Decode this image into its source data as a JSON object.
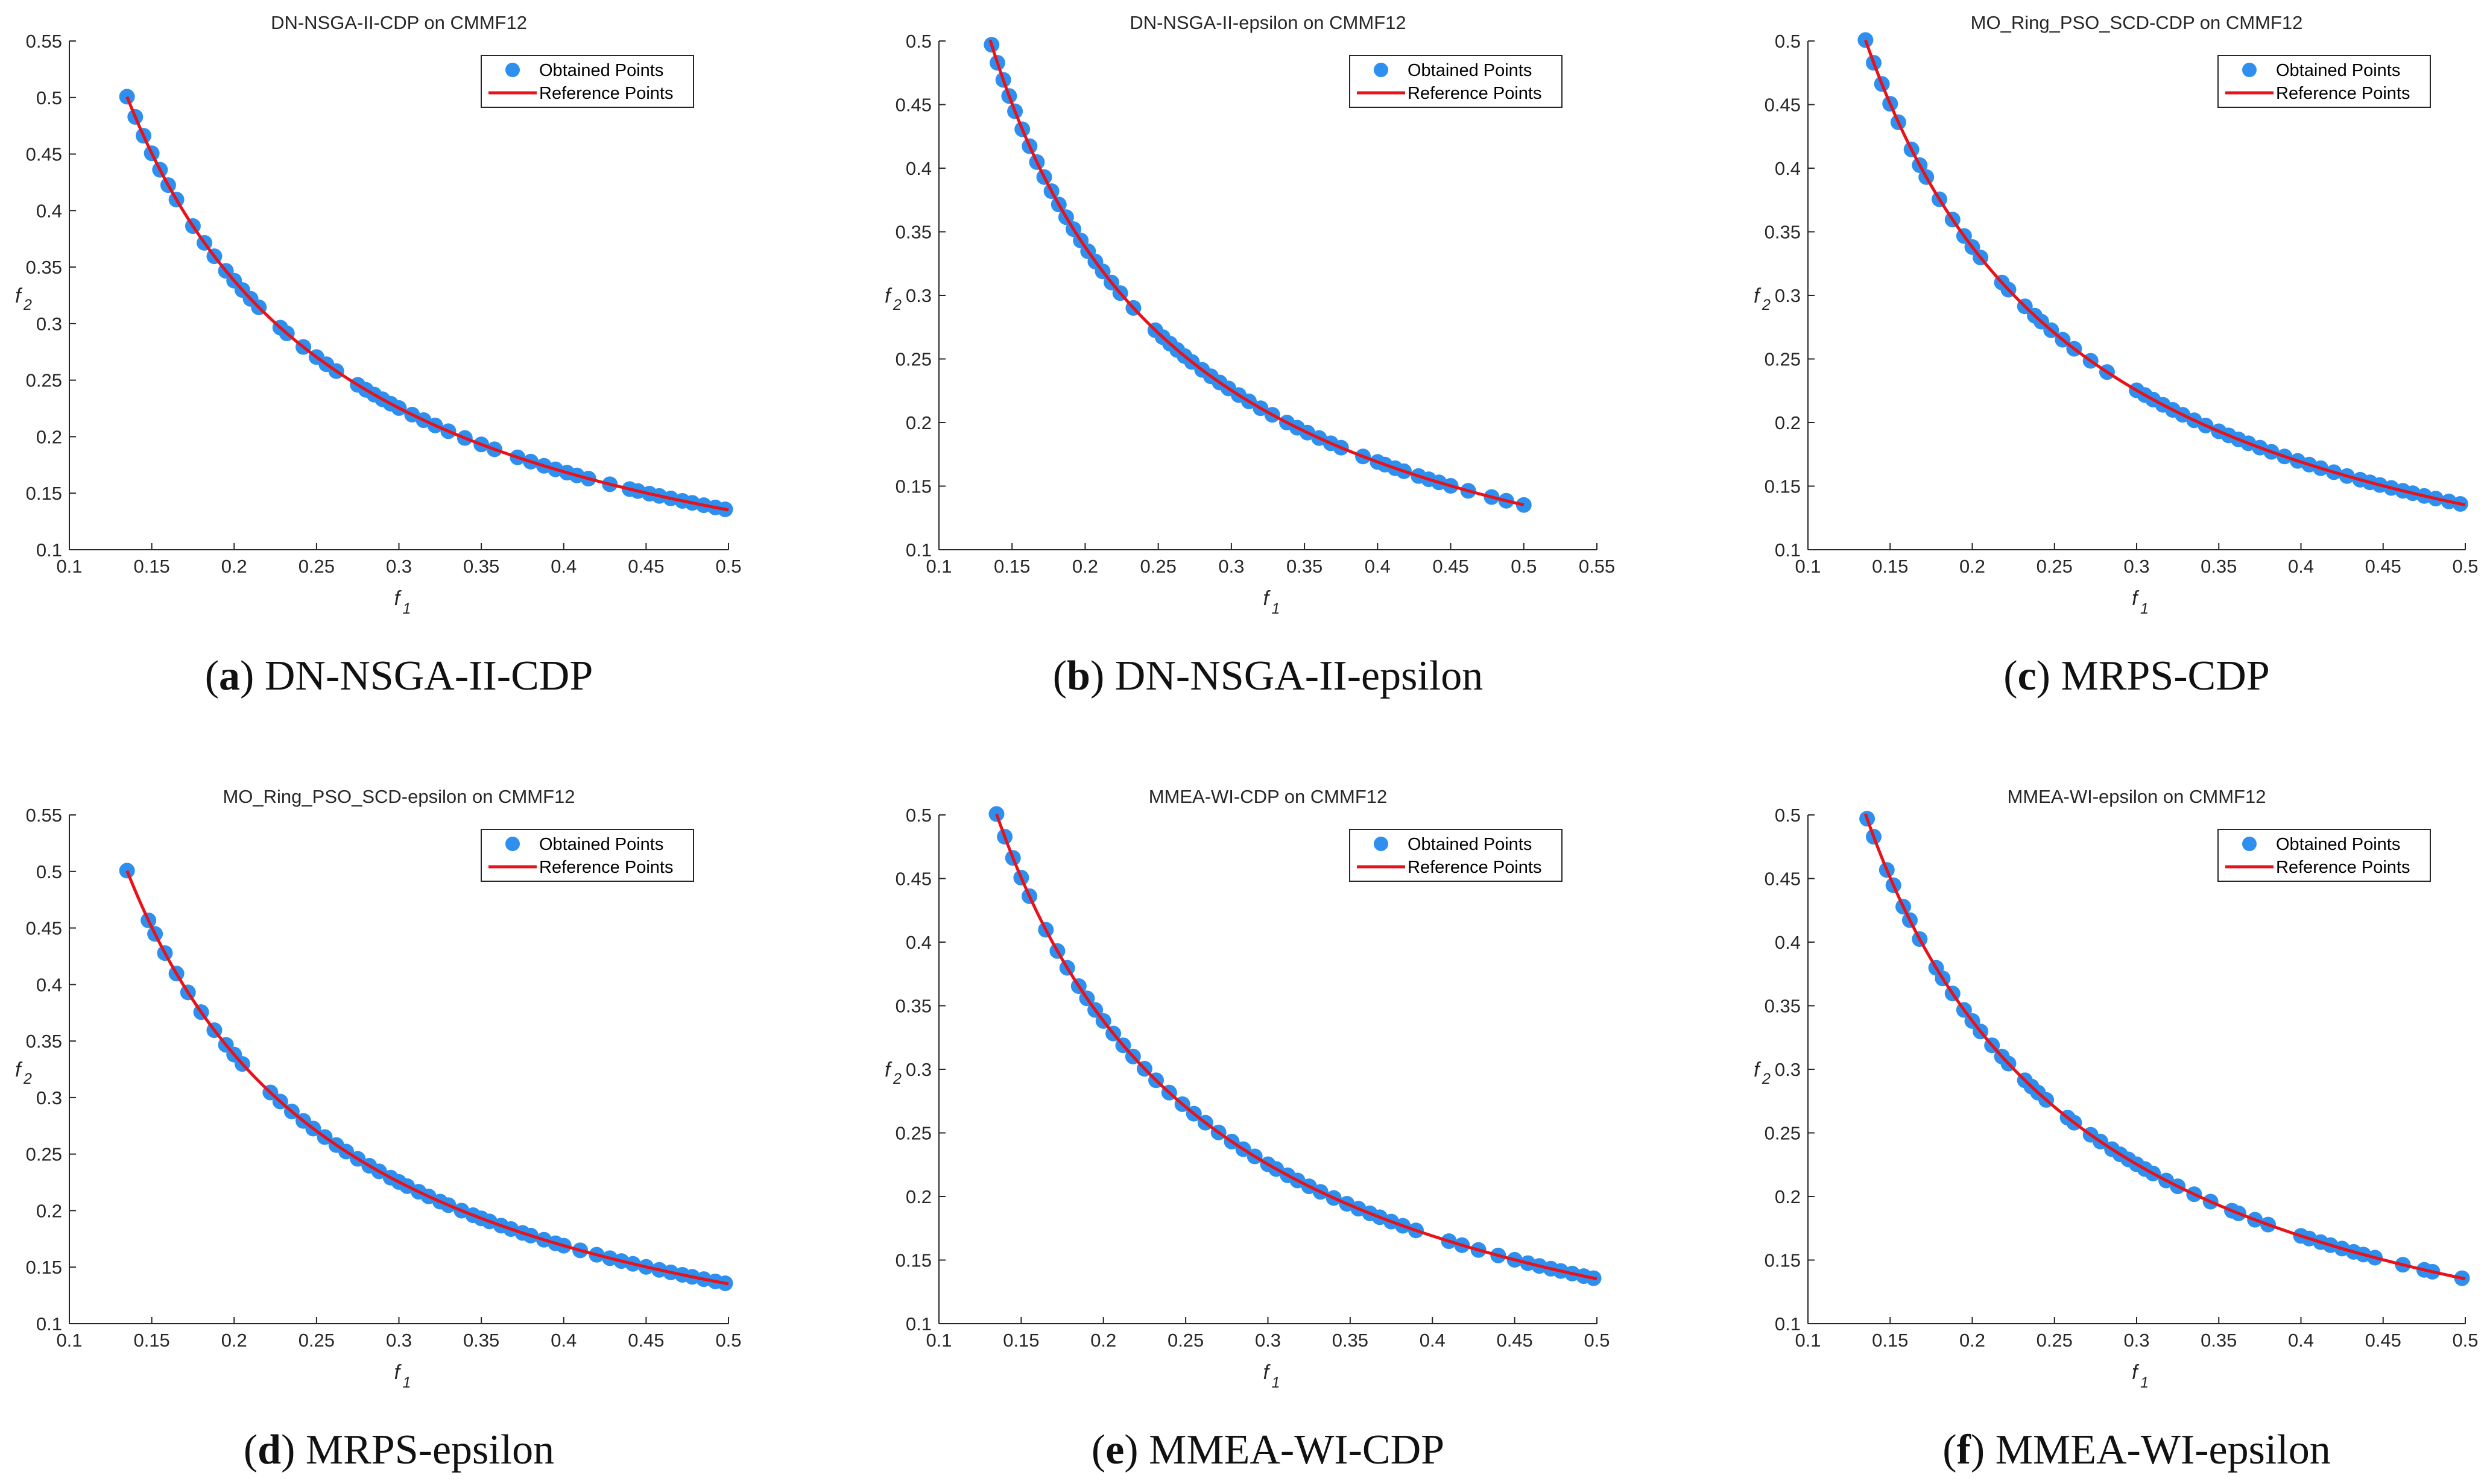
{
  "colors": {
    "obtained": "#2f8fef",
    "reference": "#e8121b",
    "axis": "#262626",
    "legend_border": "#262626"
  },
  "legend": {
    "obtained_label": "Obtained Points",
    "reference_label": "Reference Points"
  },
  "axis_labels": {
    "x": "f",
    "x_sub": "1",
    "y": "f",
    "y_sub": "2"
  },
  "chart_data": [
    {
      "type": "scatter",
      "title": "DN-NSGA-II-CDP on CMMF12",
      "caption_letter": "a",
      "caption_text": "DN-NSGA-II-CDP",
      "xlim": [
        0.1,
        0.5
      ],
      "ylim": [
        0.1,
        0.55
      ],
      "xticks": [
        "0.1",
        "0.15",
        "0.2",
        "0.25",
        "0.3",
        "0.35",
        "0.4",
        "0.45",
        "0.5"
      ],
      "yticks": [
        "0.1",
        "0.15",
        "0.2",
        "0.25",
        "0.3",
        "0.35",
        "0.4",
        "0.45",
        "0.5",
        "0.55"
      ],
      "reference_curve": "y = 0.0676 / x, x from 0.135 to 0.5",
      "series": [
        {
          "name": "Obtained Points",
          "x": [
            0.135,
            0.14,
            0.145,
            0.15,
            0.155,
            0.16,
            0.165,
            0.175,
            0.182,
            0.188,
            0.195,
            0.2,
            0.205,
            0.21,
            0.215,
            0.228,
            0.232,
            0.242,
            0.25,
            0.256,
            0.262,
            0.275,
            0.28,
            0.285,
            0.29,
            0.295,
            0.3,
            0.308,
            0.315,
            0.322,
            0.33,
            0.34,
            0.35,
            0.358,
            0.372,
            0.38,
            0.388,
            0.395,
            0.402,
            0.408,
            0.415,
            0.428,
            0.44,
            0.445,
            0.452,
            0.458,
            0.465,
            0.472,
            0.478,
            0.485,
            0.492,
            0.498
          ]
        },
        {
          "name": "Reference Points",
          "x": [
            0.135,
            0.5
          ]
        }
      ]
    },
    {
      "type": "scatter",
      "title": "DN-NSGA-II-epsilon on CMMF12",
      "caption_letter": "b",
      "caption_text": "DN-NSGA-II-epsilon",
      "xlim": [
        0.1,
        0.55
      ],
      "ylim": [
        0.1,
        0.5
      ],
      "xticks": [
        "0.1",
        "0.15",
        "0.2",
        "0.25",
        "0.3",
        "0.35",
        "0.4",
        "0.45",
        "0.5",
        "0.55"
      ],
      "yticks": [
        "0.1",
        "0.15",
        "0.2",
        "0.25",
        "0.3",
        "0.35",
        "0.4",
        "0.45",
        "0.5"
      ],
      "reference_curve": "y = 0.0676 / x, x from 0.135 to 0.5",
      "series": [
        {
          "name": "Obtained Points",
          "x": [
            0.136,
            0.14,
            0.144,
            0.148,
            0.152,
            0.157,
            0.162,
            0.167,
            0.172,
            0.177,
            0.182,
            0.187,
            0.192,
            0.197,
            0.202,
            0.207,
            0.212,
            0.218,
            0.224,
            0.233,
            0.248,
            0.253,
            0.258,
            0.263,
            0.268,
            0.273,
            0.28,
            0.286,
            0.292,
            0.298,
            0.305,
            0.312,
            0.32,
            0.328,
            0.338,
            0.345,
            0.352,
            0.36,
            0.368,
            0.375,
            0.39,
            0.4,
            0.405,
            0.412,
            0.418,
            0.428,
            0.435,
            0.442,
            0.45,
            0.462,
            0.478,
            0.488,
            0.5
          ]
        },
        {
          "name": "Reference Points",
          "x": [
            0.135,
            0.5
          ]
        }
      ]
    },
    {
      "type": "scatter",
      "title": "MO_Ring_PSO_SCD-CDP on CMMF12",
      "caption_letter": "c",
      "caption_text": "MRPS-CDP",
      "xlim": [
        0.1,
        0.5
      ],
      "ylim": [
        0.1,
        0.5
      ],
      "xticks": [
        "0.1",
        "0.15",
        "0.2",
        "0.25",
        "0.3",
        "0.35",
        "0.4",
        "0.45",
        "0.5"
      ],
      "yticks": [
        "0.1",
        "0.15",
        "0.2",
        "0.25",
        "0.3",
        "0.35",
        "0.4",
        "0.45",
        "0.5"
      ],
      "reference_curve": "y = 0.0676 / x, x from 0.135 to 0.5",
      "series": [
        {
          "name": "Obtained Points",
          "x": [
            0.135,
            0.14,
            0.145,
            0.15,
            0.155,
            0.163,
            0.168,
            0.172,
            0.18,
            0.188,
            0.195,
            0.2,
            0.205,
            0.218,
            0.222,
            0.232,
            0.238,
            0.242,
            0.248,
            0.255,
            0.262,
            0.272,
            0.282,
            0.3,
            0.305,
            0.31,
            0.316,
            0.322,
            0.328,
            0.335,
            0.342,
            0.35,
            0.356,
            0.362,
            0.368,
            0.375,
            0.382,
            0.39,
            0.398,
            0.405,
            0.412,
            0.42,
            0.428,
            0.436,
            0.442,
            0.448,
            0.455,
            0.462,
            0.468,
            0.475,
            0.482,
            0.49,
            0.497
          ]
        },
        {
          "name": "Reference Points",
          "x": [
            0.135,
            0.5
          ]
        }
      ]
    },
    {
      "type": "scatter",
      "title": "MO_Ring_PSO_SCD-epsilon on CMMF12",
      "caption_letter": "d",
      "caption_text": "MRPS-epsilon",
      "xlim": [
        0.1,
        0.5
      ],
      "ylim": [
        0.1,
        0.55
      ],
      "xticks": [
        "0.1",
        "0.15",
        "0.2",
        "0.25",
        "0.3",
        "0.35",
        "0.4",
        "0.45",
        "0.5"
      ],
      "yticks": [
        "0.1",
        "0.15",
        "0.2",
        "0.25",
        "0.3",
        "0.35",
        "0.4",
        "0.45",
        "0.5",
        "0.55"
      ],
      "reference_curve": "y = 0.0676 / x, x from 0.135 to 0.5",
      "series": [
        {
          "name": "Obtained Points",
          "x": [
            0.135,
            0.148,
            0.152,
            0.158,
            0.165,
            0.172,
            0.18,
            0.188,
            0.195,
            0.2,
            0.205,
            0.222,
            0.228,
            0.235,
            0.242,
            0.248,
            0.255,
            0.262,
            0.268,
            0.275,
            0.282,
            0.288,
            0.295,
            0.3,
            0.305,
            0.312,
            0.318,
            0.325,
            0.33,
            0.338,
            0.345,
            0.35,
            0.355,
            0.362,
            0.368,
            0.375,
            0.38,
            0.388,
            0.395,
            0.4,
            0.41,
            0.42,
            0.428,
            0.435,
            0.442,
            0.45,
            0.458,
            0.465,
            0.472,
            0.478,
            0.485,
            0.492,
            0.498
          ]
        },
        {
          "name": "Reference Points",
          "x": [
            0.135,
            0.5
          ]
        }
      ]
    },
    {
      "type": "scatter",
      "title": "MMEA-WI-CDP on CMMF12",
      "caption_letter": "e",
      "caption_text": "MMEA-WI-CDP",
      "xlim": [
        0.1,
        0.5
      ],
      "ylim": [
        0.1,
        0.5
      ],
      "xticks": [
        "0.1",
        "0.15",
        "0.2",
        "0.25",
        "0.3",
        "0.35",
        "0.4",
        "0.45",
        "0.5"
      ],
      "yticks": [
        "0.1",
        "0.15",
        "0.2",
        "0.25",
        "0.3",
        "0.35",
        "0.4",
        "0.45",
        "0.5"
      ],
      "reference_curve": "y = 0.0676 / x, x from 0.135 to 0.5",
      "series": [
        {
          "name": "Obtained Points",
          "x": [
            0.135,
            0.14,
            0.145,
            0.15,
            0.155,
            0.165,
            0.172,
            0.178,
            0.185,
            0.19,
            0.195,
            0.2,
            0.206,
            0.212,
            0.218,
            0.225,
            0.232,
            0.24,
            0.248,
            0.255,
            0.262,
            0.27,
            0.278,
            0.285,
            0.292,
            0.3,
            0.305,
            0.312,
            0.318,
            0.325,
            0.332,
            0.34,
            0.348,
            0.355,
            0.362,
            0.368,
            0.375,
            0.382,
            0.39,
            0.41,
            0.418,
            0.428,
            0.44,
            0.45,
            0.458,
            0.465,
            0.472,
            0.478,
            0.485,
            0.492,
            0.498
          ]
        },
        {
          "name": "Reference Points",
          "x": [
            0.135,
            0.5
          ]
        }
      ]
    },
    {
      "type": "scatter",
      "title": "MMEA-WI-epsilon on CMMF12",
      "caption_letter": "f",
      "caption_text": "MMEA-WI-epsilon",
      "xlim": [
        0.1,
        0.5
      ],
      "ylim": [
        0.1,
        0.5
      ],
      "xticks": [
        "0.1",
        "0.15",
        "0.2",
        "0.25",
        "0.3",
        "0.35",
        "0.4",
        "0.45",
        "0.5"
      ],
      "yticks": [
        "0.1",
        "0.15",
        "0.2",
        "0.25",
        "0.3",
        "0.35",
        "0.4",
        "0.45",
        "0.5"
      ],
      "reference_curve": "y = 0.0676 / x, x from 0.135 to 0.5",
      "series": [
        {
          "name": "Obtained Points",
          "x": [
            0.136,
            0.14,
            0.148,
            0.152,
            0.158,
            0.162,
            0.168,
            0.178,
            0.182,
            0.188,
            0.195,
            0.2,
            0.205,
            0.212,
            0.218,
            0.222,
            0.232,
            0.236,
            0.24,
            0.245,
            0.258,
            0.262,
            0.272,
            0.278,
            0.285,
            0.29,
            0.295,
            0.3,
            0.305,
            0.31,
            0.318,
            0.325,
            0.335,
            0.345,
            0.358,
            0.362,
            0.372,
            0.38,
            0.4,
            0.405,
            0.412,
            0.418,
            0.425,
            0.432,
            0.438,
            0.445,
            0.462,
            0.475,
            0.48,
            0.498
          ]
        },
        {
          "name": "Reference Points",
          "x": [
            0.135,
            0.5
          ]
        }
      ]
    }
  ]
}
